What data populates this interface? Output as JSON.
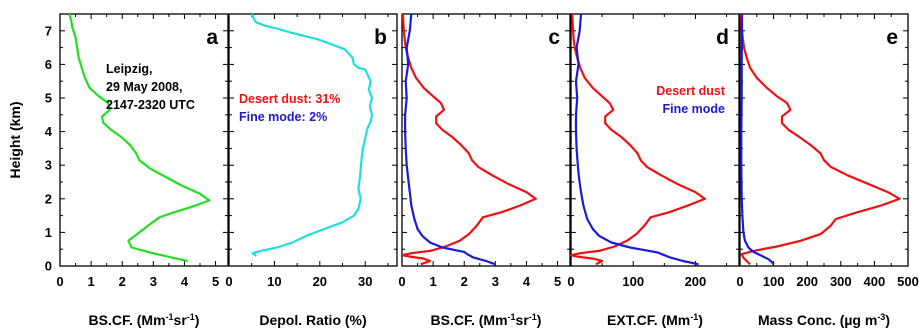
{
  "figure": {
    "ylabel": "Height (km)",
    "ylim": [
      0,
      7.5
    ],
    "yticks": [
      "0",
      "1",
      "2",
      "3",
      "4",
      "5",
      "6",
      "7"
    ]
  },
  "colors": {
    "green": "#22dd22",
    "cyan": "#22dddd",
    "red": "#ee1111",
    "blue": "#1a1ad8",
    "black": "#000000"
  },
  "chart_data": [
    {
      "type": "line",
      "panel": "a",
      "xlabel": "BS.CF. (Mm-1sr-1)",
      "xlim": [
        0,
        5.4
      ],
      "xticks": [
        "0",
        "1",
        "2",
        "3",
        "4",
        "5"
      ],
      "annotations": [
        "Leipzig,",
        "29 May 2008,",
        "2147-2320 UTC"
      ],
      "series": [
        {
          "color": "#22dd22",
          "points": [
            [
              4.1,
              0.15
            ],
            [
              3.6,
              0.25
            ],
            [
              2.9,
              0.4
            ],
            [
              2.3,
              0.55
            ],
            [
              2.2,
              0.75
            ],
            [
              2.55,
              1.0
            ],
            [
              2.9,
              1.25
            ],
            [
              3.2,
              1.45
            ],
            [
              3.6,
              1.58
            ],
            [
              4.2,
              1.75
            ],
            [
              4.8,
              1.95
            ],
            [
              4.5,
              2.15
            ],
            [
              3.9,
              2.4
            ],
            [
              3.4,
              2.65
            ],
            [
              2.9,
              2.9
            ],
            [
              2.55,
              3.15
            ],
            [
              2.45,
              3.35
            ],
            [
              2.25,
              3.6
            ],
            [
              1.95,
              3.85
            ],
            [
              1.65,
              4.05
            ],
            [
              1.4,
              4.25
            ],
            [
              1.35,
              4.45
            ],
            [
              1.6,
              4.65
            ],
            [
              1.55,
              4.85
            ],
            [
              1.25,
              5.05
            ],
            [
              0.95,
              5.3
            ],
            [
              0.8,
              5.6
            ],
            [
              0.7,
              5.9
            ],
            [
              0.6,
              6.2
            ],
            [
              0.55,
              6.5
            ],
            [
              0.5,
              6.8
            ],
            [
              0.4,
              7.1
            ],
            [
              0.35,
              7.35
            ],
            [
              0.3,
              7.5
            ]
          ]
        }
      ]
    },
    {
      "type": "line",
      "panel": "b",
      "xlabel": "Depol. Ratio (%)",
      "xlim": [
        0,
        37
      ],
      "xticks": [
        "0",
        "10",
        "20",
        "30"
      ],
      "legend": [
        {
          "label": "Desert dust: 31%",
          "color": "#ee1111"
        },
        {
          "label": "Fine mode: 2%",
          "color": "#1a1ad8"
        }
      ],
      "series": [
        {
          "color": "#22dddd",
          "points": [
            [
              6.0,
              0.3
            ],
            [
              5.2,
              0.38
            ],
            [
              7.0,
              0.45
            ],
            [
              10.5,
              0.55
            ],
            [
              14.0,
              0.7
            ],
            [
              17.0,
              0.9
            ],
            [
              21.0,
              1.1
            ],
            [
              25.0,
              1.3
            ],
            [
              27.5,
              1.5
            ],
            [
              28.5,
              1.7
            ],
            [
              29.0,
              2.0
            ],
            [
              28.5,
              2.3
            ],
            [
              28.8,
              2.6
            ],
            [
              29.0,
              2.9
            ],
            [
              29.2,
              3.2
            ],
            [
              29.5,
              3.5
            ],
            [
              30.0,
              3.8
            ],
            [
              30.5,
              4.1
            ],
            [
              31.2,
              4.3
            ],
            [
              31.5,
              4.5
            ],
            [
              31.0,
              4.75
            ],
            [
              31.5,
              5.0
            ],
            [
              30.8,
              5.25
            ],
            [
              31.2,
              5.5
            ],
            [
              30.5,
              5.7
            ],
            [
              30.0,
              5.85
            ],
            [
              28.5,
              5.9
            ],
            [
              27.5,
              6.0
            ],
            [
              27.2,
              6.2
            ],
            [
              25.5,
              6.45
            ],
            [
              22.5,
              6.6
            ],
            [
              19.5,
              6.75
            ],
            [
              16.5,
              6.85
            ],
            [
              13.5,
              6.95
            ],
            [
              11.0,
              7.05
            ],
            [
              8.0,
              7.15
            ],
            [
              6.0,
              7.25
            ],
            [
              5.5,
              7.35
            ],
            [
              5.0,
              7.5
            ]
          ]
        }
      ]
    },
    {
      "type": "line",
      "panel": "c",
      "xlabel": "BS.CF. (Mm-1sr-1)",
      "xlim": [
        0,
        5.4
      ],
      "xticks": [
        "0",
        "1",
        "2",
        "3",
        "4",
        "5"
      ],
      "series": [
        {
          "color": "#ee1111",
          "points": [
            [
              0.6,
              0.05
            ],
            [
              0.9,
              0.15
            ],
            [
              0.7,
              0.22
            ],
            [
              0.25,
              0.28
            ],
            [
              0.0,
              0.32
            ],
            [
              0.3,
              0.38
            ],
            [
              0.9,
              0.45
            ],
            [
              1.4,
              0.58
            ],
            [
              1.85,
              0.75
            ],
            [
              2.15,
              0.95
            ],
            [
              2.4,
              1.2
            ],
            [
              2.6,
              1.45
            ],
            [
              3.2,
              1.6
            ],
            [
              3.8,
              1.8
            ],
            [
              4.3,
              2.0
            ],
            [
              4.0,
              2.2
            ],
            [
              3.4,
              2.45
            ],
            [
              2.9,
              2.7
            ],
            [
              2.45,
              2.95
            ],
            [
              2.25,
              3.15
            ],
            [
              2.15,
              3.35
            ],
            [
              1.9,
              3.6
            ],
            [
              1.6,
              3.85
            ],
            [
              1.3,
              4.05
            ],
            [
              1.1,
              4.25
            ],
            [
              1.1,
              4.45
            ],
            [
              1.35,
              4.65
            ],
            [
              1.25,
              4.85
            ],
            [
              1.0,
              5.05
            ],
            [
              0.7,
              5.3
            ],
            [
              0.45,
              5.6
            ],
            [
              0.3,
              5.9
            ],
            [
              0.2,
              6.2
            ],
            [
              0.12,
              6.5
            ],
            [
              0.08,
              6.8
            ],
            [
              0.05,
              7.1
            ],
            [
              0.03,
              7.5
            ]
          ]
        },
        {
          "color": "#1a1ad8",
          "points": [
            [
              3.0,
              0.05
            ],
            [
              2.7,
              0.15
            ],
            [
              2.3,
              0.25
            ],
            [
              2.1,
              0.35
            ],
            [
              2.0,
              0.42
            ],
            [
              1.3,
              0.55
            ],
            [
              0.9,
              0.7
            ],
            [
              0.65,
              0.9
            ],
            [
              0.5,
              1.1
            ],
            [
              0.4,
              1.4
            ],
            [
              0.3,
              1.8
            ],
            [
              0.25,
              2.2
            ],
            [
              0.2,
              2.6
            ],
            [
              0.15,
              3.0
            ],
            [
              0.12,
              3.5
            ],
            [
              0.1,
              4.0
            ],
            [
              0.1,
              4.5
            ],
            [
              0.15,
              5.0
            ],
            [
              0.12,
              5.5
            ],
            [
              0.2,
              6.0
            ],
            [
              0.15,
              6.5
            ],
            [
              0.25,
              7.0
            ],
            [
              0.3,
              7.5
            ]
          ]
        }
      ]
    },
    {
      "type": "line",
      "panel": "d",
      "xlabel": "EXT.CF. (Mm-1)",
      "xlim": [
        0,
        270
      ],
      "xticks": [
        "0",
        "100",
        "200"
      ],
      "legend": [
        {
          "label": "Desert dust",
          "color": "#ee1111"
        },
        {
          "label": "Fine mode",
          "color": "#1a1ad8"
        }
      ],
      "series": [
        {
          "color": "#ee1111",
          "points": [
            [
              40,
              0.05
            ],
            [
              50,
              0.15
            ],
            [
              35,
              0.22
            ],
            [
              10,
              0.28
            ],
            [
              0,
              0.32
            ],
            [
              15,
              0.38
            ],
            [
              45,
              0.45
            ],
            [
              70,
              0.58
            ],
            [
              90,
              0.75
            ],
            [
              105,
              0.95
            ],
            [
              118,
              1.2
            ],
            [
              128,
              1.45
            ],
            [
              158,
              1.6
            ],
            [
              188,
              1.8
            ],
            [
              215,
              2.0
            ],
            [
              200,
              2.2
            ],
            [
              170,
              2.45
            ],
            [
              145,
              2.7
            ],
            [
              122,
              2.95
            ],
            [
              112,
              3.15
            ],
            [
              107,
              3.35
            ],
            [
              95,
              3.6
            ],
            [
              80,
              3.85
            ],
            [
              65,
              4.05
            ],
            [
              55,
              4.25
            ],
            [
              55,
              4.45
            ],
            [
              68,
              4.65
            ],
            [
              62,
              4.85
            ],
            [
              50,
              5.05
            ],
            [
              35,
              5.3
            ],
            [
              22,
              5.6
            ],
            [
              15,
              5.9
            ],
            [
              10,
              6.2
            ],
            [
              6,
              6.5
            ],
            [
              4,
              6.8
            ],
            [
              3,
              7.1
            ],
            [
              2,
              7.5
            ]
          ]
        },
        {
          "color": "#1a1ad8",
          "points": [
            [
              205,
              0.05
            ],
            [
              180,
              0.15
            ],
            [
              160,
              0.25
            ],
            [
              150,
              0.32
            ],
            [
              140,
              0.4
            ],
            [
              95,
              0.55
            ],
            [
              65,
              0.7
            ],
            [
              45,
              0.9
            ],
            [
              35,
              1.1
            ],
            [
              26,
              1.4
            ],
            [
              20,
              1.8
            ],
            [
              16,
              2.2
            ],
            [
              13,
              2.6
            ],
            [
              11,
              3.0
            ],
            [
              9,
              3.5
            ],
            [
              8,
              4.0
            ],
            [
              8,
              4.5
            ],
            [
              10,
              5.0
            ],
            [
              8,
              5.5
            ],
            [
              12,
              6.0
            ],
            [
              9,
              6.5
            ],
            [
              14,
              7.0
            ],
            [
              16,
              7.5
            ]
          ]
        }
      ]
    },
    {
      "type": "line",
      "panel": "e",
      "xlabel": "Mass Conc. (µg m-3)",
      "xlim": [
        0,
        500
      ],
      "xticks": [
        "0",
        "100",
        "200",
        "300",
        "400",
        "500"
      ],
      "series": [
        {
          "color": "#ee1111",
          "points": [
            [
              30,
              0.05
            ],
            [
              20,
              0.15
            ],
            [
              10,
              0.25
            ],
            [
              5,
              0.35
            ],
            [
              40,
              0.45
            ],
            [
              110,
              0.58
            ],
            [
              180,
              0.75
            ],
            [
              240,
              0.95
            ],
            [
              270,
              1.2
            ],
            [
              285,
              1.4
            ],
            [
              350,
              1.6
            ],
            [
              420,
              1.8
            ],
            [
              475,
              2.0
            ],
            [
              440,
              2.2
            ],
            [
              380,
              2.45
            ],
            [
              320,
              2.7
            ],
            [
              270,
              2.95
            ],
            [
              250,
              3.15
            ],
            [
              240,
              3.35
            ],
            [
              210,
              3.6
            ],
            [
              175,
              3.85
            ],
            [
              145,
              4.05
            ],
            [
              125,
              4.25
            ],
            [
              125,
              4.45
            ],
            [
              150,
              4.65
            ],
            [
              140,
              4.85
            ],
            [
              110,
              5.05
            ],
            [
              80,
              5.3
            ],
            [
              50,
              5.6
            ],
            [
              30,
              5.9
            ],
            [
              20,
              6.2
            ],
            [
              12,
              6.5
            ],
            [
              8,
              6.8
            ],
            [
              5,
              7.1
            ],
            [
              3,
              7.5
            ]
          ]
        },
        {
          "color": "#1a1ad8",
          "points": [
            [
              100,
              0.05
            ],
            [
              95,
              0.12
            ],
            [
              85,
              0.2
            ],
            [
              65,
              0.3
            ],
            [
              40,
              0.42
            ],
            [
              25,
              0.55
            ],
            [
              15,
              0.75
            ],
            [
              10,
              1.0
            ],
            [
              7,
              1.5
            ],
            [
              5,
              2.0
            ],
            [
              4,
              3.0
            ],
            [
              4,
              4.0
            ],
            [
              5,
              5.0
            ],
            [
              5,
              6.0
            ],
            [
              6,
              7.0
            ],
            [
              6,
              7.5
            ]
          ]
        }
      ]
    }
  ]
}
